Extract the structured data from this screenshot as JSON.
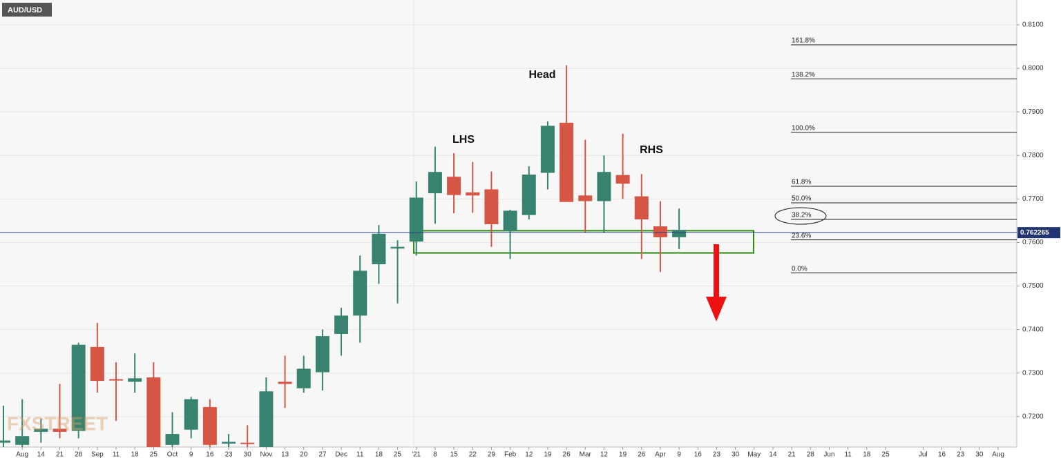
{
  "chart_data": {
    "type": "candlestick",
    "title": "AUD/USD",
    "watermark": "FXSTREET",
    "categories": [
      null,
      "Aug",
      "14",
      "21",
      "28",
      "Sep",
      "11",
      "18",
      "25",
      "Oct",
      "9",
      "16",
      "23",
      "30",
      "Nov",
      "13",
      "20",
      "27",
      "Dec",
      "11",
      "18",
      "25",
      "'21",
      "8",
      "15",
      "22",
      "29",
      "Feb",
      "12",
      "19",
      "26",
      "Mar",
      "12",
      "19",
      "26",
      "Apr",
      "9",
      "16",
      "23",
      "30",
      "May",
      "14",
      "21",
      "28",
      "Jun",
      "11",
      "18",
      "25",
      null,
      "Jul",
      "16",
      "23",
      "30",
      "Aug"
    ],
    "open": [
      0.714,
      0.7135,
      0.7165,
      0.7172,
      0.7167,
      0.736,
      0.7286,
      0.728,
      0.729,
      0.7135,
      0.717,
      0.7222,
      0.7138,
      0.714,
      0.713,
      0.728,
      0.7265,
      0.7302,
      0.739,
      0.7432,
      0.755,
      0.7586,
      0.7602,
      0.7713,
      0.7751,
      0.7715,
      0.7722,
      0.7626,
      0.7663,
      0.776,
      0.7875,
      0.7708,
      0.7695,
      0.7755,
      0.7706,
      0.7637,
      0.7612,
      null,
      null,
      null,
      null,
      null,
      null,
      null,
      null,
      null,
      null,
      null,
      null,
      null,
      null,
      null,
      null,
      null
    ],
    "high": [
      0.7225,
      0.724,
      0.7195,
      0.7275,
      0.737,
      0.7415,
      0.7325,
      0.7345,
      0.7325,
      0.721,
      0.7245,
      0.724,
      0.716,
      0.718,
      0.729,
      0.734,
      0.734,
      0.74,
      0.745,
      0.757,
      0.764,
      0.7605,
      0.774,
      0.782,
      0.7805,
      0.7785,
      0.7763,
      0.7675,
      0.7775,
      0.7878,
      0.8007,
      0.7836,
      0.78,
      0.785,
      0.7757,
      0.7695,
      0.7678,
      null,
      null,
      null,
      null,
      null,
      null,
      null,
      null,
      null,
      null,
      null,
      null,
      null,
      null,
      null,
      null,
      null
    ],
    "low": [
      0.713,
      0.713,
      0.714,
      0.715,
      0.715,
      0.7255,
      0.719,
      0.7255,
      0.713,
      0.713,
      0.715,
      0.713,
      0.713,
      0.713,
      0.713,
      0.722,
      0.7255,
      0.726,
      0.734,
      0.737,
      0.7505,
      0.746,
      0.757,
      0.7643,
      0.7667,
      0.7668,
      0.759,
      0.7562,
      0.7653,
      0.7722,
      0.7695,
      0.7622,
      0.7622,
      0.77,
      0.7562,
      0.7532,
      0.7585,
      null,
      null,
      null,
      null,
      null,
      null,
      null,
      null,
      null,
      null,
      null,
      null,
      null,
      null,
      null,
      null,
      null
    ],
    "close": [
      0.7145,
      0.7155,
      0.7172,
      0.7165,
      0.7365,
      0.7282,
      0.7284,
      0.7288,
      0.713,
      0.716,
      0.724,
      0.7135,
      0.7142,
      0.7138,
      0.7258,
      0.7275,
      0.731,
      0.7385,
      0.7432,
      0.7535,
      0.762,
      0.759,
      0.7703,
      0.7762,
      0.7709,
      0.7708,
      0.7642,
      0.7673,
      0.7756,
      0.7868,
      0.7693,
      0.7695,
      0.7762,
      0.7735,
      0.7653,
      0.7612,
      0.7629,
      null,
      null,
      null,
      null,
      null,
      null,
      null,
      null,
      null,
      null,
      null,
      null,
      null,
      null,
      null,
      null,
      null
    ],
    "up_color": "#378370",
    "down_color": "#d65646",
    "ylim": [
      0.713,
      0.8157
    ],
    "yticks": [
      {
        "value": 0.72,
        "label": "0.7200"
      },
      {
        "value": 0.73,
        "label": "0.7300"
      },
      {
        "value": 0.74,
        "label": "0.7400"
      },
      {
        "value": 0.75,
        "label": "0.7500"
      },
      {
        "value": 0.76,
        "label": "0.7600"
      },
      {
        "value": 0.77,
        "label": "0.7700"
      },
      {
        "value": 0.78,
        "label": "0.7800"
      },
      {
        "value": 0.79,
        "label": "0.7900"
      },
      {
        "value": 0.8,
        "label": "0.8000"
      },
      {
        "value": 0.81,
        "label": "0.8100"
      }
    ],
    "grid": true,
    "last_price": 0.762265,
    "zone": [
      0.7576,
      0.7627
    ],
    "fib_levels": [
      {
        "label": "161.8%",
        "value": 0.8054
      },
      {
        "label": "138.2%",
        "value": 0.7976
      },
      {
        "label": "100.0%",
        "value": 0.7853
      },
      {
        "label": "61.8%",
        "value": 0.7729
      },
      {
        "label": "50.0%",
        "value": 0.7691
      },
      {
        "label": "38.2%",
        "value": 0.7653
      },
      {
        "label": "23.6%",
        "value": 0.7606
      },
      {
        "label": "0.0%",
        "value": 0.753
      }
    ],
    "annotations": [
      "Head",
      "LHS",
      "RHS"
    ]
  }
}
